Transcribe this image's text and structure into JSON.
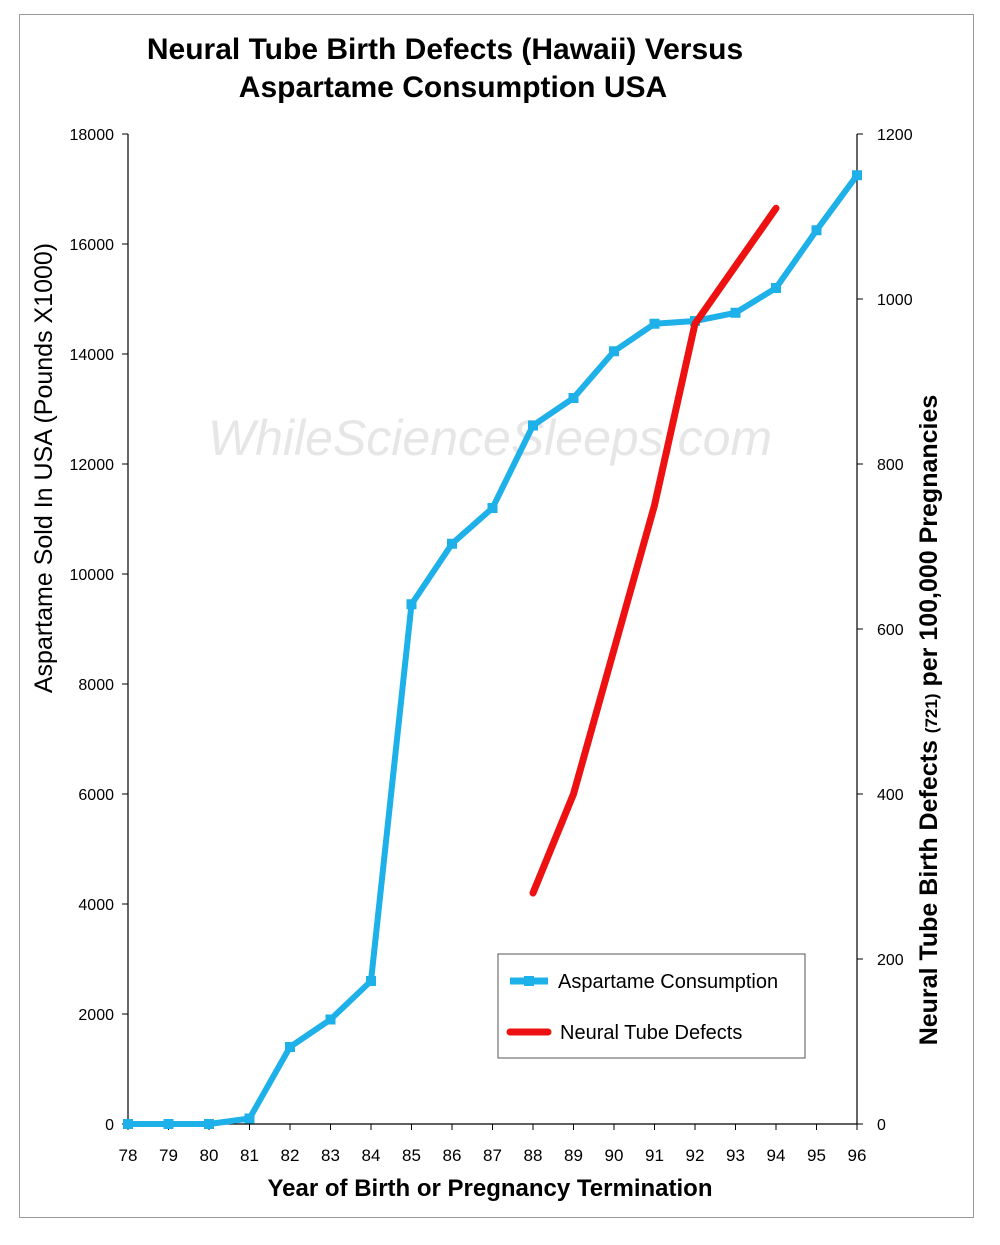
{
  "chart_data": {
    "type": "line",
    "title": [
      "Neural Tube Birth Defects (Hawaii) Versus",
      "Aspartame Consumption USA"
    ],
    "xlabel": "Year of Birth or Pregnancy Termination",
    "ylabel_left": "Aspartame Sold In USA  (Pounds X1000)",
    "ylabel_right": {
      "part1": "Neural Tube Birth Defects ",
      "part2": "(721)",
      "part3": " per 100,000 Pregnancies"
    },
    "categories": [
      "78",
      "79",
      "80",
      "81",
      "82",
      "83",
      "84",
      "85",
      "86",
      "87",
      "88",
      "89",
      "90",
      "91",
      "92",
      "93",
      "94",
      "95",
      "96"
    ],
    "y_left_ticks": [
      "0",
      "2000",
      "4000",
      "6000",
      "8000",
      "10000",
      "12000",
      "14000",
      "16000",
      "18000"
    ],
    "y_right_ticks": [
      "0",
      "200",
      "400",
      "600",
      "800",
      "1000",
      "1200"
    ],
    "ylim_left": [
      0,
      18000
    ],
    "ylim_right": [
      0,
      1200
    ],
    "series": [
      {
        "name": "Aspartame Consumption",
        "axis": "left",
        "color": "#1EB0E8",
        "marker": "square",
        "x": [
          "78",
          "79",
          "80",
          "81",
          "82",
          "83",
          "84",
          "85",
          "86",
          "87",
          "88",
          "89",
          "90",
          "91",
          "92",
          "93",
          "94",
          "95",
          "96"
        ],
        "values": [
          0,
          0,
          0,
          100,
          1400,
          1900,
          2600,
          9450,
          10550,
          11200,
          12700,
          13200,
          14050,
          14550,
          14600,
          14750,
          15200,
          16250,
          17250
        ]
      },
      {
        "name": "Neural Tube Defects",
        "axis": "right",
        "color": "#EE1111",
        "marker": "none",
        "x": [
          "88",
          "89",
          "90",
          "91",
          "92",
          "93",
          "94"
        ],
        "values": [
          280,
          400,
          575,
          750,
          970,
          1040,
          1110
        ]
      }
    ],
    "legend_position": "bottom-right",
    "grid": false
  },
  "watermark": "WhileScienceSleeps.com"
}
